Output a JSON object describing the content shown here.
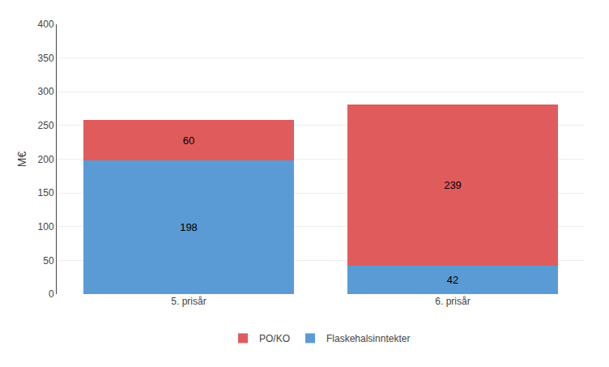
{
  "chart_data": {
    "type": "bar",
    "stacked": true,
    "categories": [
      "5. prisår",
      "6. prisår"
    ],
    "series": [
      {
        "name": "Flaskehalsinntekter",
        "color": "#5b9bd5",
        "values": [
          198,
          42
        ]
      },
      {
        "name": "PO/KO",
        "color": "#e05c5c",
        "values": [
          60,
          239
        ]
      }
    ],
    "ylabel": "M€",
    "ylim": [
      0,
      400
    ],
    "yticks": [
      0,
      50,
      100,
      150,
      200,
      250,
      300,
      350,
      400
    ],
    "grid": true,
    "legend": "bottom",
    "data_labels": true
  }
}
